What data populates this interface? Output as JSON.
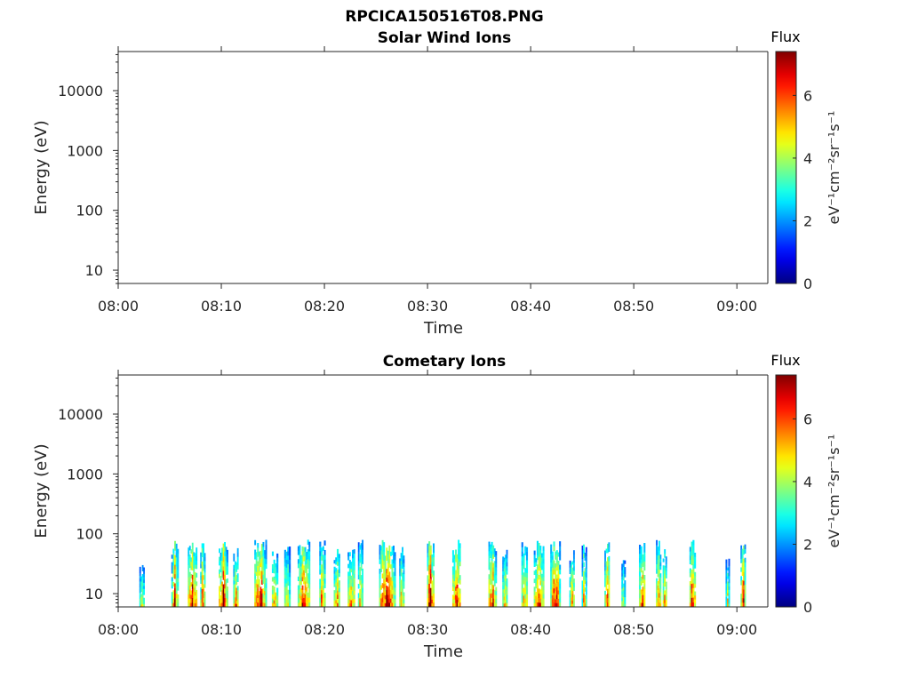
{
  "figure_title": "RPCICA150516T08.PNG",
  "chart_data": [
    {
      "type": "heatmap",
      "title": "Solar Wind Ions",
      "xlabel": "Time",
      "ylabel": "Energy (eV)",
      "x_range": [
        "08:00",
        "09:03"
      ],
      "x_ticks": [
        "08:00",
        "08:10",
        "08:20",
        "08:30",
        "08:40",
        "08:50",
        "09:00"
      ],
      "y_scale": "log",
      "y_range": [
        6,
        45000
      ],
      "y_ticks": [
        10,
        100,
        1000,
        10000
      ],
      "y_tick_labels": [
        "10",
        "100",
        "1000",
        "10000"
      ],
      "colorbar": {
        "label": "Flux",
        "units": "eV⁻¹cm⁻²sr⁻¹s⁻¹",
        "range": [
          0,
          7.4
        ],
        "ticks": [
          0,
          2,
          4,
          6
        ],
        "colormap": "jet"
      },
      "bursts": []
    },
    {
      "type": "heatmap",
      "title": "Cometary Ions",
      "xlabel": "Time",
      "ylabel": "Energy (eV)",
      "x_range": [
        "08:00",
        "09:03"
      ],
      "x_ticks": [
        "08:00",
        "08:10",
        "08:20",
        "08:30",
        "08:40",
        "08:50",
        "09:00"
      ],
      "y_scale": "log",
      "y_range": [
        6,
        45000
      ],
      "y_ticks": [
        10,
        100,
        1000,
        10000
      ],
      "y_tick_labels": [
        "10",
        "100",
        "1000",
        "10000"
      ],
      "colorbar": {
        "label": "Flux",
        "units": "eV⁻¹cm⁻²sr⁻¹s⁻¹",
        "range": [
          0,
          7.4
        ],
        "ticks": [
          0,
          2,
          4,
          6
        ],
        "colormap": "jet"
      },
      "bursts": [
        {
          "t": 2.3,
          "w": 0.5,
          "emax": 35,
          "peak": 4.8
        },
        {
          "t": 5.5,
          "w": 0.7,
          "emax": 80,
          "peak": 6.4
        },
        {
          "t": 7.2,
          "w": 0.9,
          "emax": 80,
          "peak": 7.0
        },
        {
          "t": 8.2,
          "w": 0.5,
          "emax": 80,
          "peak": 6.6
        },
        {
          "t": 10.2,
          "w": 0.9,
          "emax": 80,
          "peak": 7.2
        },
        {
          "t": 11.4,
          "w": 0.5,
          "emax": 60,
          "peak": 6.0
        },
        {
          "t": 13.8,
          "w": 1.2,
          "emax": 80,
          "peak": 7.0
        },
        {
          "t": 15.2,
          "w": 0.6,
          "emax": 60,
          "peak": 5.8
        },
        {
          "t": 16.4,
          "w": 0.6,
          "emax": 70,
          "peak": 5.5
        },
        {
          "t": 18.0,
          "w": 1.2,
          "emax": 80,
          "peak": 6.8
        },
        {
          "t": 19.8,
          "w": 0.6,
          "emax": 80,
          "peak": 6.5
        },
        {
          "t": 21.2,
          "w": 0.6,
          "emax": 60,
          "peak": 6.0
        },
        {
          "t": 22.6,
          "w": 0.7,
          "emax": 70,
          "peak": 6.2
        },
        {
          "t": 23.5,
          "w": 0.5,
          "emax": 80,
          "peak": 5.5
        },
        {
          "t": 26.1,
          "w": 1.6,
          "emax": 80,
          "peak": 7.4
        },
        {
          "t": 27.5,
          "w": 0.5,
          "emax": 70,
          "peak": 5.8
        },
        {
          "t": 30.3,
          "w": 0.7,
          "emax": 80,
          "peak": 7.2
        },
        {
          "t": 32.8,
          "w": 0.8,
          "emax": 80,
          "peak": 7.2
        },
        {
          "t": 36.3,
          "w": 0.8,
          "emax": 80,
          "peak": 6.8
        },
        {
          "t": 37.5,
          "w": 0.5,
          "emax": 70,
          "peak": 5.5
        },
        {
          "t": 39.4,
          "w": 0.6,
          "emax": 80,
          "peak": 6.0
        },
        {
          "t": 40.8,
          "w": 1.0,
          "emax": 80,
          "peak": 6.8
        },
        {
          "t": 42.4,
          "w": 1.0,
          "emax": 80,
          "peak": 7.0
        },
        {
          "t": 44.0,
          "w": 0.5,
          "emax": 60,
          "peak": 5.8
        },
        {
          "t": 45.2,
          "w": 0.5,
          "emax": 70,
          "peak": 5.5
        },
        {
          "t": 47.4,
          "w": 0.5,
          "emax": 80,
          "peak": 6.6
        },
        {
          "t": 49.0,
          "w": 0.4,
          "emax": 40,
          "peak": 5.0
        },
        {
          "t": 50.8,
          "w": 0.6,
          "emax": 80,
          "peak": 6.8
        },
        {
          "t": 52.4,
          "w": 0.5,
          "emax": 80,
          "peak": 6.6
        },
        {
          "t": 53.0,
          "w": 0.4,
          "emax": 60,
          "peak": 5.5
        },
        {
          "t": 55.7,
          "w": 0.6,
          "emax": 80,
          "peak": 6.8
        },
        {
          "t": 59.1,
          "w": 0.4,
          "emax": 40,
          "peak": 5.0
        },
        {
          "t": 60.6,
          "w": 0.5,
          "emax": 80,
          "peak": 6.8
        }
      ]
    }
  ]
}
